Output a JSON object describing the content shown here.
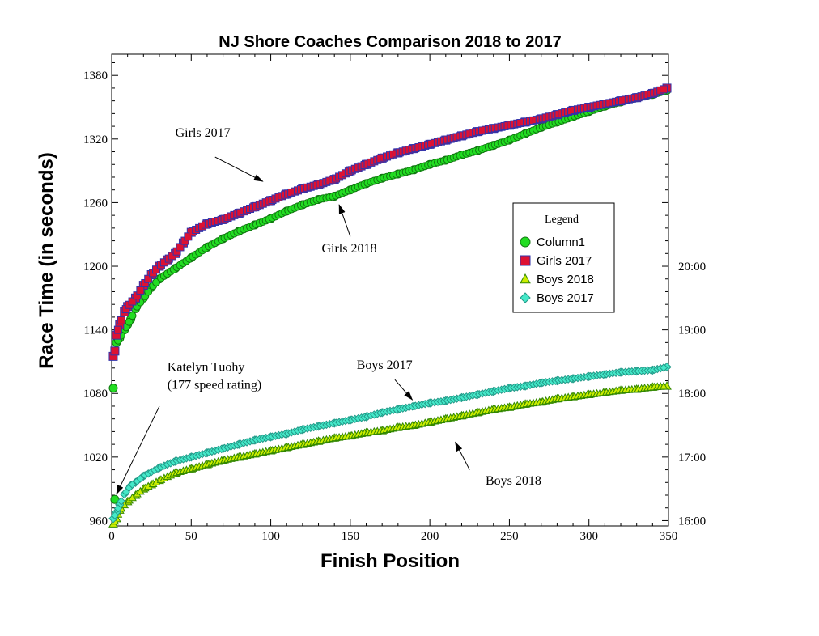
{
  "chart_data": {
    "type": "scatter",
    "title": "NJ Shore Coaches Comparison 2018 to 2017",
    "xlabel": "Finish Position",
    "ylabel": "Race Time (in seconds)",
    "xlim": [
      0,
      350
    ],
    "ylim": [
      955,
      1400
    ],
    "x_ticks": [
      0,
      50,
      100,
      150,
      200,
      250,
      300,
      350
    ],
    "y_ticks": [
      960,
      1020,
      1080,
      1140,
      1200,
      1260,
      1320,
      1380
    ],
    "right_axis_ticks": [
      {
        "value": 960,
        "label": "16:00"
      },
      {
        "value": 1020,
        "label": "17:00"
      },
      {
        "value": 1080,
        "label": "18:00"
      },
      {
        "value": 1140,
        "label": "19:00"
      },
      {
        "value": 1200,
        "label": "20:00"
      }
    ],
    "grid": false,
    "legend": {
      "title": "Legend",
      "position": "right-middle",
      "entries": [
        "Column1",
        "Girls 2017",
        "Boys 2018",
        "Boys 2017"
      ]
    },
    "series": [
      {
        "name": "Column1",
        "color": "#22dd22",
        "marker": "circle",
        "points": [
          [
            1,
            1085
          ],
          [
            2,
            980
          ],
          [
            3,
            1128
          ],
          [
            5,
            1132
          ],
          [
            8,
            1140
          ],
          [
            10,
            1145
          ],
          [
            12,
            1150
          ],
          [
            15,
            1160
          ],
          [
            20,
            1170
          ],
          [
            25,
            1180
          ],
          [
            30,
            1188
          ],
          [
            40,
            1198
          ],
          [
            50,
            1208
          ],
          [
            60,
            1218
          ],
          [
            70,
            1226
          ],
          [
            80,
            1233
          ],
          [
            90,
            1239
          ],
          [
            100,
            1245
          ],
          [
            110,
            1252
          ],
          [
            120,
            1258
          ],
          [
            130,
            1263
          ],
          [
            140,
            1266
          ],
          [
            150,
            1272
          ],
          [
            160,
            1278
          ],
          [
            170,
            1283
          ],
          [
            180,
            1287
          ],
          [
            190,
            1291
          ],
          [
            200,
            1296
          ],
          [
            210,
            1300
          ],
          [
            220,
            1305
          ],
          [
            230,
            1309
          ],
          [
            240,
            1314
          ],
          [
            250,
            1319
          ],
          [
            260,
            1325
          ],
          [
            270,
            1331
          ],
          [
            280,
            1336
          ],
          [
            290,
            1341
          ],
          [
            300,
            1346
          ],
          [
            310,
            1351
          ],
          [
            320,
            1355
          ],
          [
            330,
            1359
          ],
          [
            340,
            1362
          ],
          [
            349,
            1366
          ]
        ]
      },
      {
        "name": "Girls 2017",
        "color": "#dd1133",
        "edge": "#3333aa",
        "marker": "square",
        "points": [
          [
            1,
            1115
          ],
          [
            2,
            1120
          ],
          [
            3,
            1135
          ],
          [
            5,
            1145
          ],
          [
            8,
            1157
          ],
          [
            10,
            1162
          ],
          [
            15,
            1170
          ],
          [
            20,
            1182
          ],
          [
            25,
            1192
          ],
          [
            30,
            1200
          ],
          [
            35,
            1206
          ],
          [
            40,
            1212
          ],
          [
            45,
            1222
          ],
          [
            50,
            1232
          ],
          [
            60,
            1240
          ],
          [
            70,
            1244
          ],
          [
            80,
            1250
          ],
          [
            90,
            1256
          ],
          [
            100,
            1262
          ],
          [
            110,
            1268
          ],
          [
            120,
            1273
          ],
          [
            130,
            1277
          ],
          [
            140,
            1282
          ],
          [
            150,
            1290
          ],
          [
            160,
            1296
          ],
          [
            170,
            1302
          ],
          [
            180,
            1307
          ],
          [
            190,
            1311
          ],
          [
            200,
            1315
          ],
          [
            210,
            1319
          ],
          [
            220,
            1323
          ],
          [
            230,
            1327
          ],
          [
            240,
            1330
          ],
          [
            250,
            1333
          ],
          [
            260,
            1336
          ],
          [
            270,
            1339
          ],
          [
            280,
            1343
          ],
          [
            290,
            1347
          ],
          [
            300,
            1350
          ],
          [
            310,
            1353
          ],
          [
            320,
            1356
          ],
          [
            330,
            1359
          ],
          [
            340,
            1363
          ],
          [
            349,
            1368
          ]
        ]
      },
      {
        "name": "Boys 2018",
        "color": "#ccee00",
        "edge": "#338800",
        "marker": "triangle",
        "points": [
          [
            1,
            957
          ],
          [
            3,
            962
          ],
          [
            5,
            970
          ],
          [
            10,
            978
          ],
          [
            15,
            984
          ],
          [
            20,
            990
          ],
          [
            25,
            994
          ],
          [
            30,
            998
          ],
          [
            40,
            1005
          ],
          [
            50,
            1009
          ],
          [
            60,
            1013
          ],
          [
            70,
            1017
          ],
          [
            80,
            1020
          ],
          [
            90,
            1023
          ],
          [
            100,
            1026
          ],
          [
            110,
            1029
          ],
          [
            120,
            1032
          ],
          [
            130,
            1035
          ],
          [
            140,
            1038
          ],
          [
            150,
            1040
          ],
          [
            160,
            1043
          ],
          [
            170,
            1045
          ],
          [
            180,
            1048
          ],
          [
            190,
            1050
          ],
          [
            200,
            1053
          ],
          [
            210,
            1056
          ],
          [
            220,
            1059
          ],
          [
            230,
            1062
          ],
          [
            240,
            1065
          ],
          [
            250,
            1067
          ],
          [
            260,
            1070
          ],
          [
            270,
            1072
          ],
          [
            280,
            1075
          ],
          [
            290,
            1077
          ],
          [
            300,
            1079
          ],
          [
            310,
            1081
          ],
          [
            320,
            1083
          ],
          [
            330,
            1084
          ],
          [
            340,
            1086
          ],
          [
            349,
            1087
          ]
        ]
      },
      {
        "name": "Boys 2017",
        "color": "#44e8c8",
        "edge": "#229988",
        "marker": "diamond",
        "points": [
          [
            1,
            962
          ],
          [
            3,
            968
          ],
          [
            5,
            975
          ],
          [
            8,
            985
          ],
          [
            12,
            993
          ],
          [
            15,
            996
          ],
          [
            20,
            1002
          ],
          [
            30,
            1010
          ],
          [
            40,
            1016
          ],
          [
            50,
            1020
          ],
          [
            60,
            1024
          ],
          [
            70,
            1028
          ],
          [
            80,
            1032
          ],
          [
            90,
            1036
          ],
          [
            100,
            1039
          ],
          [
            110,
            1042
          ],
          [
            120,
            1046
          ],
          [
            130,
            1049
          ],
          [
            140,
            1052
          ],
          [
            150,
            1055
          ],
          [
            160,
            1058
          ],
          [
            170,
            1062
          ],
          [
            180,
            1065
          ],
          [
            190,
            1068
          ],
          [
            200,
            1071
          ],
          [
            210,
            1073
          ],
          [
            220,
            1076
          ],
          [
            230,
            1079
          ],
          [
            240,
            1082
          ],
          [
            250,
            1085
          ],
          [
            260,
            1087
          ],
          [
            270,
            1090
          ],
          [
            280,
            1092
          ],
          [
            290,
            1094
          ],
          [
            300,
            1096
          ],
          [
            310,
            1098
          ],
          [
            320,
            1100
          ],
          [
            330,
            1101
          ],
          [
            340,
            1102
          ],
          [
            349,
            1105
          ]
        ]
      }
    ],
    "annotations": [
      {
        "id": "girls-2017",
        "lines": [
          "Girls 2017"
        ],
        "text_at": [
          40,
          1322
        ],
        "arrow_from": [
          65,
          1303
        ],
        "arrow_to": [
          95,
          1280
        ]
      },
      {
        "id": "girls-2018",
        "lines": [
          "Girls 2018"
        ],
        "text_at": [
          132,
          1213
        ],
        "arrow_from": [
          150,
          1228
        ],
        "arrow_to": [
          143,
          1258
        ]
      },
      {
        "id": "boys-2017",
        "lines": [
          "Boys 2017"
        ],
        "text_at": [
          154,
          1103
        ],
        "arrow_from": [
          178,
          1093
        ],
        "arrow_to": [
          189,
          1074
        ]
      },
      {
        "id": "boys-2018",
        "lines": [
          "Boys 2018"
        ],
        "text_at": [
          235,
          994
        ],
        "arrow_from": [
          225,
          1008
        ],
        "arrow_to": [
          216,
          1034
        ]
      },
      {
        "id": "katelyn",
        "lines": [
          "Katelyn Tuohy",
          "(177 speed rating)"
        ],
        "text_at": [
          35,
          1101
        ],
        "arrow_from": [
          30,
          1068
        ],
        "arrow_to": [
          3,
          985
        ]
      }
    ]
  }
}
